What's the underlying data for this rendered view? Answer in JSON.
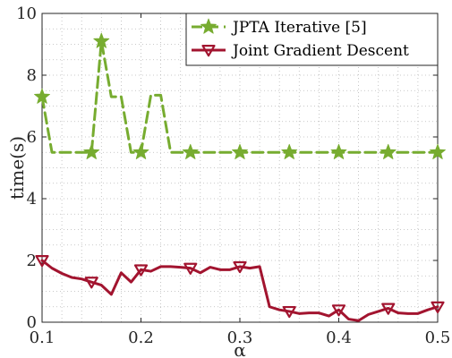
{
  "chart_data": {
    "type": "line",
    "xlabel": "α",
    "ylabel": "time(s)",
    "xlim": [
      0.1,
      0.5
    ],
    "ylim": [
      0,
      10
    ],
    "x_ticks": [
      "0.1",
      "0.2",
      "0.3",
      "0.4",
      "0.5"
    ],
    "x_tick_values": [
      0.1,
      0.2,
      0.3,
      0.4,
      0.5
    ],
    "y_ticks": [
      "0",
      "2",
      "4",
      "6",
      "8",
      "10"
    ],
    "y_tick_values": [
      0,
      2,
      4,
      6,
      8,
      10
    ],
    "grid": "dotted major and minor",
    "legend_position": "top-right",
    "series": [
      {
        "name": "JPTA Iterative [5]",
        "color": "#77ac30",
        "line_style": "dashed",
        "marker": "star",
        "x": [
          0.1,
          0.11,
          0.12,
          0.13,
          0.14,
          0.15,
          0.16,
          0.17,
          0.18,
          0.19,
          0.2,
          0.21,
          0.22,
          0.23,
          0.24,
          0.25,
          0.26,
          0.27,
          0.28,
          0.29,
          0.3,
          0.31,
          0.32,
          0.33,
          0.34,
          0.35,
          0.36,
          0.37,
          0.38,
          0.39,
          0.4,
          0.41,
          0.42,
          0.43,
          0.44,
          0.45,
          0.46,
          0.47,
          0.48,
          0.49,
          0.5
        ],
        "y": [
          7.3,
          5.5,
          5.5,
          5.5,
          5.5,
          5.5,
          9.1,
          7.3,
          7.3,
          5.5,
          5.5,
          7.35,
          7.35,
          5.5,
          5.5,
          5.5,
          5.5,
          5.5,
          5.5,
          5.5,
          5.5,
          5.5,
          5.5,
          5.5,
          5.5,
          5.5,
          5.5,
          5.5,
          5.5,
          5.5,
          5.5,
          5.5,
          5.5,
          5.5,
          5.5,
          5.5,
          5.5,
          5.5,
          5.5,
          5.5,
          5.5
        ],
        "marker_x": [
          0.1,
          0.15,
          0.16,
          0.2,
          0.25,
          0.3,
          0.35,
          0.4,
          0.45,
          0.5
        ]
      },
      {
        "name": "Joint Gradient Descent",
        "color": "#a2142f",
        "line_style": "solid",
        "marker": "triangle-down",
        "x": [
          0.1,
          0.11,
          0.12,
          0.13,
          0.14,
          0.15,
          0.16,
          0.17,
          0.18,
          0.19,
          0.2,
          0.21,
          0.22,
          0.23,
          0.24,
          0.25,
          0.26,
          0.27,
          0.28,
          0.29,
          0.3,
          0.31,
          0.32,
          0.33,
          0.34,
          0.35,
          0.36,
          0.37,
          0.38,
          0.39,
          0.4,
          0.41,
          0.42,
          0.43,
          0.44,
          0.45,
          0.46,
          0.47,
          0.48,
          0.49,
          0.5
        ],
        "y": [
          2.0,
          1.75,
          1.58,
          1.45,
          1.4,
          1.3,
          1.2,
          0.9,
          1.6,
          1.3,
          1.7,
          1.65,
          1.8,
          1.8,
          1.78,
          1.75,
          1.6,
          1.78,
          1.7,
          1.7,
          1.8,
          1.75,
          1.8,
          0.5,
          0.4,
          0.35,
          0.28,
          0.3,
          0.3,
          0.2,
          0.4,
          0.1,
          0.05,
          0.25,
          0.35,
          0.45,
          0.3,
          0.28,
          0.28,
          0.4,
          0.5
        ],
        "marker_x": [
          0.1,
          0.15,
          0.2,
          0.25,
          0.3,
          0.35,
          0.4,
          0.45,
          0.5
        ]
      }
    ]
  }
}
